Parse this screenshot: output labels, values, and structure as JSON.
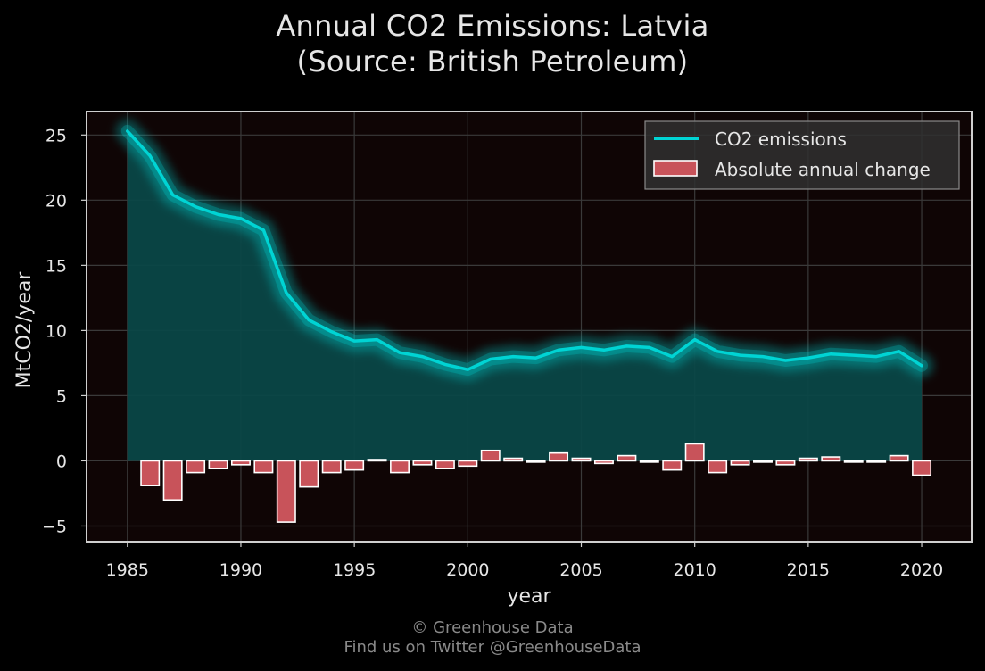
{
  "title_line1": "Annual CO2 Emissions: Latvia",
  "title_line2": "(Source: British Petroleum)",
  "footer_line1": "© Greenhouse Data",
  "footer_line2": "Find us on Twitter @GreenhouseData",
  "chart_data": {
    "type": "line",
    "xlabel": "year",
    "ylabel": "MtCO2/year",
    "xlim": [
      1983.2,
      2022.2
    ],
    "ylim": [
      -6.2,
      26.8
    ],
    "xticks": [
      1985,
      1990,
      1995,
      2000,
      2005,
      2010,
      2015,
      2020
    ],
    "yticks": [
      -5,
      0,
      5,
      10,
      15,
      20,
      25
    ],
    "ytick_labels": [
      "−5",
      "0",
      "5",
      "10",
      "15",
      "20",
      "25"
    ],
    "grid": true,
    "legend_position": "top-right",
    "x": [
      1985,
      1986,
      1987,
      1988,
      1989,
      1990,
      1991,
      1992,
      1993,
      1994,
      1995,
      1996,
      1997,
      1998,
      1999,
      2000,
      2001,
      2002,
      2003,
      2004,
      2005,
      2006,
      2007,
      2008,
      2009,
      2010,
      2011,
      2012,
      2013,
      2014,
      2015,
      2016,
      2017,
      2018,
      2019,
      2020
    ],
    "series": [
      {
        "name": "CO2 emissions",
        "kind": "line",
        "color": "#00d4d4",
        "values": [
          25.3,
          23.4,
          20.4,
          19.5,
          18.9,
          18.6,
          17.7,
          12.9,
          10.8,
          9.9,
          9.2,
          9.3,
          8.3,
          8.0,
          7.4,
          7.0,
          7.8,
          8.0,
          7.9,
          8.5,
          8.7,
          8.5,
          8.8,
          8.7,
          8.0,
          9.3,
          8.4,
          8.1,
          8.0,
          7.7,
          7.9,
          8.2,
          8.1,
          8.0,
          8.4,
          7.3
        ]
      },
      {
        "name": "Absolute annual change",
        "kind": "bar",
        "color": "#c8535a",
        "values": [
          null,
          -1.9,
          -3.0,
          -0.9,
          -0.6,
          -0.3,
          -0.9,
          -4.7,
          -2.0,
          -0.9,
          -0.7,
          0.1,
          -0.9,
          -0.3,
          -0.6,
          -0.4,
          0.8,
          0.2,
          -0.1,
          0.6,
          0.2,
          -0.2,
          0.4,
          -0.1,
          -0.7,
          1.3,
          -0.9,
          -0.3,
          -0.1,
          -0.3,
          0.2,
          0.3,
          -0.1,
          -0.1,
          0.4,
          -1.1
        ]
      }
    ]
  }
}
